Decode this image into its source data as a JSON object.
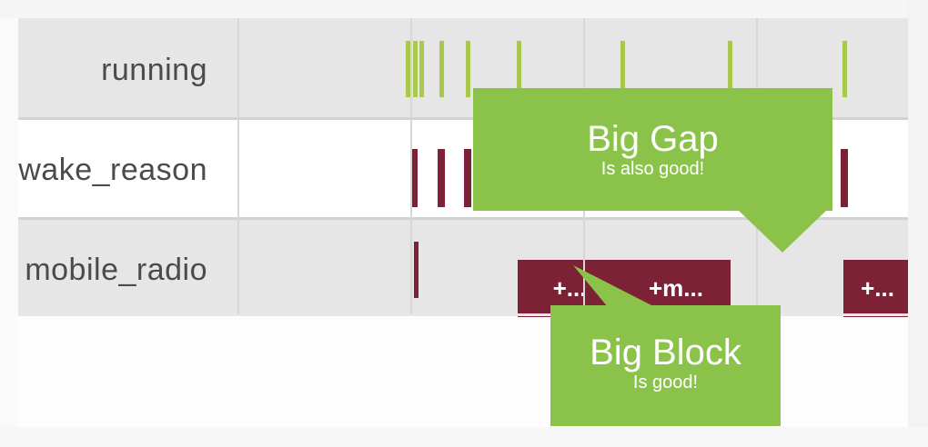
{
  "rows": [
    {
      "label": "running"
    },
    {
      "label": "wake_reason"
    },
    {
      "label": "mobile_radio"
    }
  ],
  "blocks": [
    {
      "label": "+..."
    },
    {
      "label": "+m..."
    },
    {
      "label": "+..."
    }
  ],
  "callouts": {
    "gap": {
      "title": "Big Gap",
      "subtitle": "Is also good!"
    },
    "block": {
      "title": "Big Block",
      "subtitle": "Is good!"
    }
  },
  "colors": {
    "running": "#a9c94d",
    "wake_reason": "#7d2236",
    "mobile_radio": "#7d2236",
    "callout": "#8bc34a",
    "row_band": "#e6e6e6"
  }
}
